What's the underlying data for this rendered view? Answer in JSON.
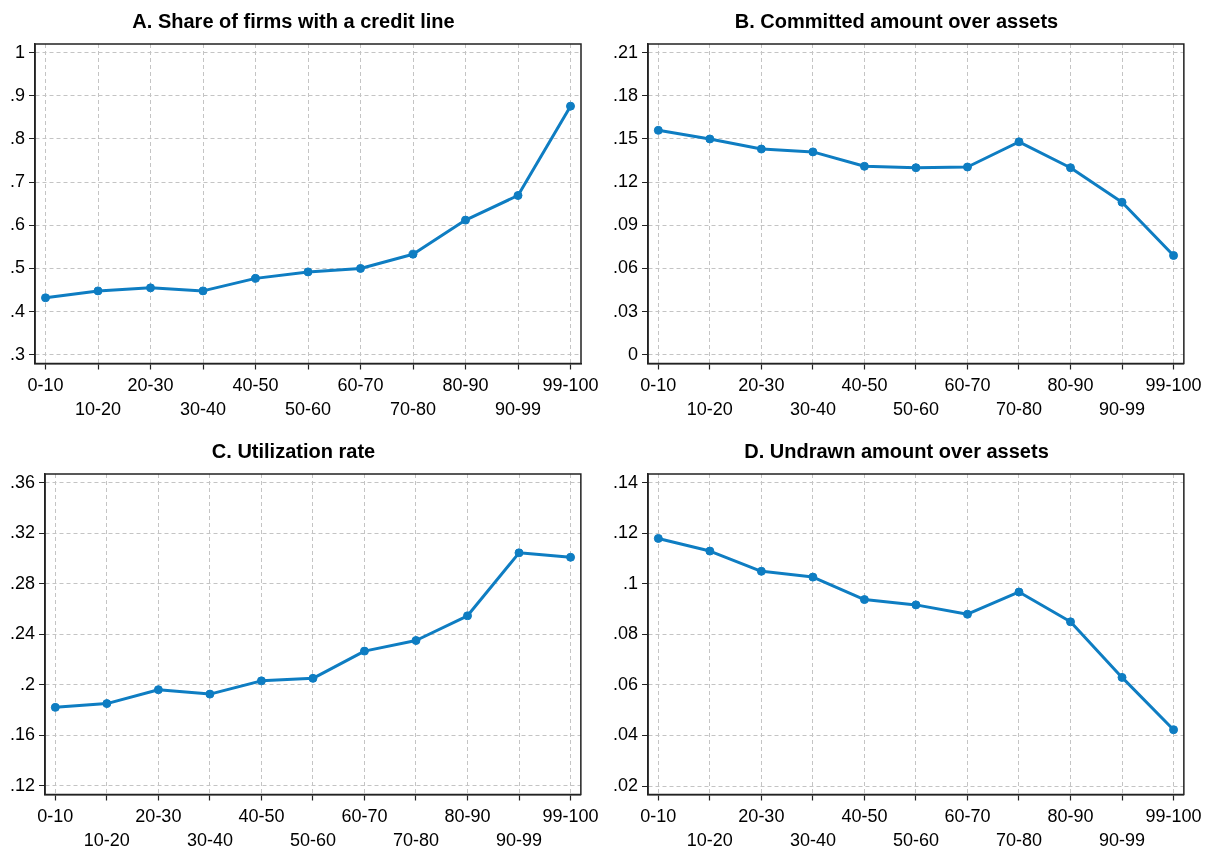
{
  "chart_data": [
    {
      "type": "line",
      "title": "A. Share of firms with a credit line",
      "categories": [
        "0-10",
        "10-20",
        "20-30",
        "30-40",
        "40-50",
        "50-60",
        "60-70",
        "70-80",
        "80-90",
        "90-99",
        "99-100"
      ],
      "values": [
        0.432,
        0.448,
        0.455,
        0.448,
        0.477,
        0.492,
        0.5,
        0.533,
        0.612,
        0.669,
        0.876
      ],
      "color": "#0e7dc2",
      "ylim": [
        0.28,
        1.02
      ],
      "yticks": [
        {
          "value": 0.3,
          "label": ".3"
        },
        {
          "value": 0.4,
          "label": ".4"
        },
        {
          "value": 0.5,
          "label": ".5"
        },
        {
          "value": 0.6,
          "label": ".6"
        },
        {
          "value": 0.7,
          "label": ".7"
        },
        {
          "value": 0.8,
          "label": ".8"
        },
        {
          "value": 0.9,
          "label": ".9"
        },
        1
      ],
      "grid": true,
      "marker": "circle",
      "line_style": "solid"
    },
    {
      "type": "line",
      "title": "B. Committed amount over assets",
      "categories": [
        "0-10",
        "10-20",
        "20-30",
        "30-40",
        "40-50",
        "50-60",
        "60-70",
        "70-80",
        "80-90",
        "90-99",
        "99-100"
      ],
      "values": [
        0.156,
        0.15,
        0.143,
        0.141,
        0.131,
        0.13,
        0.1305,
        0.148,
        0.13,
        0.106,
        0.069
      ],
      "color": "#0e7dc2",
      "ylim": [
        -0.006,
        0.216
      ],
      "yticks": [
        0,
        {
          "value": 0.03,
          "label": ".03"
        },
        {
          "value": 0.06,
          "label": ".06"
        },
        {
          "value": 0.09,
          "label": ".09"
        },
        {
          "value": 0.12,
          "label": ".12"
        },
        {
          "value": 0.15,
          "label": ".15"
        },
        {
          "value": 0.18,
          "label": ".18"
        },
        {
          "value": 0.21,
          "label": ".21"
        }
      ],
      "grid": true,
      "marker": "circle",
      "line_style": "solid"
    },
    {
      "type": "line",
      "title": "C. Utilization rate",
      "categories": [
        "0-10",
        "10-20",
        "20-30",
        "30-40",
        "40-50",
        "50-60",
        "60-70",
        "70-80",
        "80-90",
        "90-99",
        "99-100"
      ],
      "values": [
        0.182,
        0.185,
        0.196,
        0.1925,
        0.203,
        0.205,
        0.2266,
        0.235,
        0.2546,
        0.3045,
        0.301
      ],
      "color": "#0e7dc2",
      "ylim": [
        0.113,
        0.367
      ],
      "yticks": [
        {
          "value": 0.12,
          "label": ".12"
        },
        {
          "value": 0.16,
          "label": ".16"
        },
        {
          "value": 0.2,
          "label": ".2"
        },
        {
          "value": 0.24,
          "label": ".24"
        },
        {
          "value": 0.28,
          "label": ".28"
        },
        {
          "value": 0.32,
          "label": ".32"
        },
        {
          "value": 0.36,
          "label": ".36"
        }
      ],
      "grid": true,
      "marker": "circle",
      "line_style": "solid"
    },
    {
      "type": "line",
      "title": "D. Undrawn amount over assets",
      "categories": [
        "0-10",
        "10-20",
        "20-30",
        "30-40",
        "40-50",
        "50-60",
        "60-70",
        "70-80",
        "80-90",
        "90-99",
        "99-100"
      ],
      "values": [
        0.118,
        0.113,
        0.105,
        0.1027,
        0.0938,
        0.0917,
        0.088,
        0.0968,
        0.085,
        0.063,
        0.0423
      ],
      "color": "#0e7dc2",
      "ylim": [
        0.0167,
        0.1435
      ],
      "yticks": [
        {
          "value": 0.02,
          "label": ".02"
        },
        {
          "value": 0.04,
          "label": ".04"
        },
        {
          "value": 0.06,
          "label": ".06"
        },
        {
          "value": 0.08,
          "label": ".08"
        },
        {
          "value": 0.1,
          "label": ".1"
        },
        {
          "value": 0.12,
          "label": ".12"
        },
        {
          "value": 0.14,
          "label": ".14"
        }
      ],
      "grid": true,
      "marker": "circle",
      "line_style": "solid"
    }
  ]
}
